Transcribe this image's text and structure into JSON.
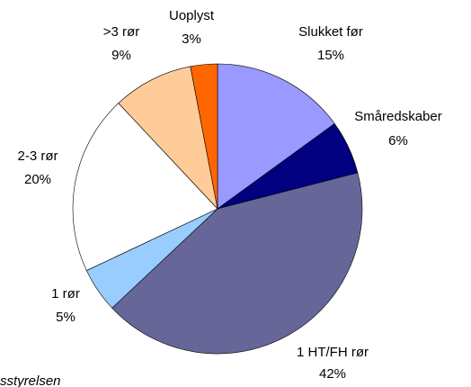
{
  "chart_data": {
    "type": "pie",
    "categories": [
      "Slukket før",
      "Småredskaber",
      "1 HT/FH rør",
      "1 rør",
      "2-3 rør",
      ">3 rør",
      "Uoplyst"
    ],
    "values": [
      15,
      6,
      42,
      5,
      20,
      9,
      3
    ],
    "value_labels": [
      "15%",
      "6%",
      "42%",
      "5%",
      "20%",
      "9%",
      "3%"
    ],
    "colors": [
      "#9999ff",
      "#000080",
      "#666699",
      "#99ccff",
      "#ffffff",
      "#ffcc99",
      "#ff6600"
    ],
    "source": "sstyrelsen"
  }
}
